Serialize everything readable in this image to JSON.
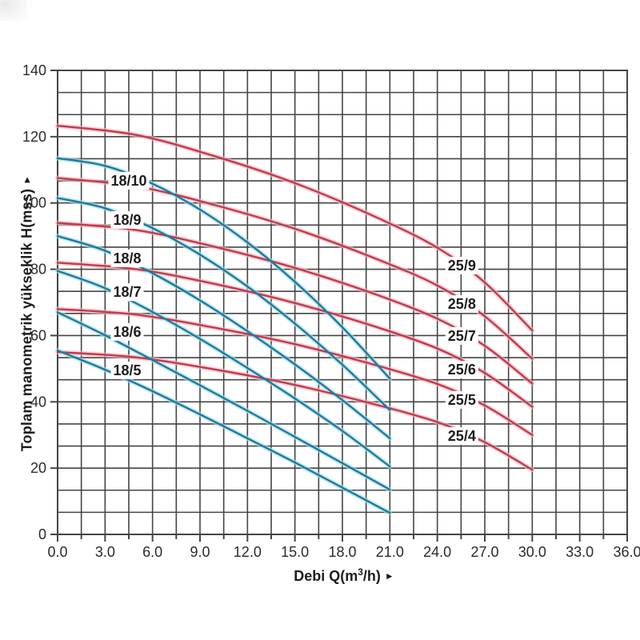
{
  "page": {
    "background": "#ffffff"
  },
  "chart_data": {
    "type": "line",
    "title": "",
    "xlabel": {
      "prefix": "Debi Q(m",
      "sup": "3",
      "suffix": "/h)",
      "arrow": "►"
    },
    "ylabel": {
      "text": "Toplam manometrik yükseklik H(mss)",
      "arrow": "►"
    },
    "xlim": [
      0,
      36
    ],
    "ylim": [
      0,
      140
    ],
    "x_major_step": 3,
    "x_minor_step": 1.5,
    "y_major_step": 20,
    "y_minor_step": 6.6667,
    "grid": true,
    "x_ticks": [
      "0.0",
      "3.0",
      "6.0",
      "9.0",
      "12.0",
      "15.0",
      "18.0",
      "21.0",
      "24.0",
      "27.0",
      "30.0",
      "33.0",
      "36.0"
    ],
    "y_ticks": [
      "0",
      "20",
      "40",
      "60",
      "80",
      "100",
      "120",
      "140"
    ],
    "colors": {
      "red_main": "#c23a4e",
      "red_halo": "#f0b9c0",
      "blue_main": "#1e7b9c",
      "blue_halo": "#a8dcec",
      "grid": "#454545",
      "tick_text": "#2b2b2b",
      "label_text": "#1c1c1c",
      "label_bg": "#ffffff"
    },
    "series": [
      {
        "name": "25/9",
        "family": "red",
        "points": [
          [
            0,
            123.3
          ],
          [
            5,
            120.5
          ],
          [
            10,
            114.0
          ],
          [
            15,
            106.0
          ],
          [
            20,
            96.0
          ],
          [
            24,
            86.5
          ],
          [
            27,
            76.0
          ],
          [
            30,
            61.5
          ]
        ]
      },
      {
        "name": "25/8",
        "family": "red",
        "points": [
          [
            0,
            107.5
          ],
          [
            5,
            105.0
          ],
          [
            10,
            99.3
          ],
          [
            15,
            92.2
          ],
          [
            20,
            83.4
          ],
          [
            24,
            75.1
          ],
          [
            27,
            65.8
          ],
          [
            30,
            53.0
          ]
        ]
      },
      {
        "name": "25/7",
        "family": "red",
        "points": [
          [
            0,
            94.0
          ],
          [
            5,
            91.8
          ],
          [
            10,
            86.7
          ],
          [
            15,
            80.4
          ],
          [
            20,
            72.6
          ],
          [
            24,
            65.1
          ],
          [
            27,
            56.9
          ],
          [
            30,
            45.5
          ]
        ]
      },
      {
        "name": "25/6",
        "family": "red",
        "points": [
          [
            0,
            82.0
          ],
          [
            5,
            80.0
          ],
          [
            10,
            75.5
          ],
          [
            15,
            69.8
          ],
          [
            20,
            62.8
          ],
          [
            24,
            56.1
          ],
          [
            27,
            48.7
          ],
          [
            30,
            38.5
          ]
        ]
      },
      {
        "name": "25/5",
        "family": "red",
        "points": [
          [
            0,
            68.0
          ],
          [
            5,
            66.3
          ],
          [
            10,
            62.3
          ],
          [
            15,
            57.4
          ],
          [
            20,
            51.2
          ],
          [
            24,
            45.4
          ],
          [
            27,
            38.9
          ],
          [
            30,
            30.0
          ]
        ]
      },
      {
        "name": "25/4",
        "family": "red",
        "points": [
          [
            0,
            55.0
          ],
          [
            5,
            53.4
          ],
          [
            10,
            49.7
          ],
          [
            15,
            45.1
          ],
          [
            20,
            39.3
          ],
          [
            24,
            33.9
          ],
          [
            27,
            27.8
          ],
          [
            30,
            19.5
          ]
        ]
      },
      {
        "name": "18/10",
        "family": "blue",
        "points": [
          [
            0,
            113.5
          ],
          [
            3,
            111.2
          ],
          [
            6,
            105.8
          ],
          [
            9,
            98.0
          ],
          [
            12,
            88.1
          ],
          [
            15,
            76.2
          ],
          [
            18,
            62.5
          ],
          [
            21,
            47.0
          ]
        ]
      },
      {
        "name": "18/9",
        "family": "blue",
        "points": [
          [
            0,
            101.5
          ],
          [
            3,
            98.4
          ],
          [
            6,
            92.4
          ],
          [
            9,
            84.4
          ],
          [
            12,
            74.8
          ],
          [
            15,
            63.6
          ],
          [
            18,
            51.2
          ],
          [
            21,
            37.5
          ]
        ]
      },
      {
        "name": "18/8",
        "family": "blue",
        "points": [
          [
            0,
            90.0
          ],
          [
            3,
            85.6
          ],
          [
            6,
            78.8
          ],
          [
            9,
            70.6
          ],
          [
            12,
            61.3
          ],
          [
            15,
            51.3
          ],
          [
            18,
            40.5
          ],
          [
            21,
            29.0
          ]
        ]
      },
      {
        "name": "18/7",
        "family": "blue",
        "points": [
          [
            0,
            79.5
          ],
          [
            3,
            74.3
          ],
          [
            6,
            67.1
          ],
          [
            9,
            59.0
          ],
          [
            12,
            50.2
          ],
          [
            15,
            41.0
          ],
          [
            18,
            31.2
          ],
          [
            21,
            20.5
          ]
        ]
      },
      {
        "name": "18/6",
        "family": "blue",
        "points": [
          [
            0,
            67.0
          ],
          [
            3,
            60.1
          ],
          [
            6,
            52.6
          ],
          [
            9,
            45.0
          ],
          [
            12,
            37.3
          ],
          [
            15,
            29.4
          ],
          [
            18,
            21.5
          ],
          [
            21,
            13.5
          ]
        ]
      },
      {
        "name": "18/5",
        "family": "blue",
        "points": [
          [
            0,
            55.5
          ],
          [
            3,
            49.7
          ],
          [
            6,
            43.2
          ],
          [
            9,
            36.2
          ],
          [
            12,
            29.0
          ],
          [
            15,
            21.7
          ],
          [
            18,
            14.1
          ],
          [
            21,
            6.5
          ]
        ]
      }
    ],
    "curve_labels": [
      {
        "text": "18/10",
        "q": 4.5,
        "h": 106.7,
        "family": "blue"
      },
      {
        "text": "18/9",
        "q": 4.4,
        "h": 94.9,
        "family": "blue"
      },
      {
        "text": "18/8",
        "q": 4.4,
        "h": 83.3,
        "family": "blue"
      },
      {
        "text": "18/7",
        "q": 4.4,
        "h": 73.1,
        "family": "blue"
      },
      {
        "text": "18/6",
        "q": 4.4,
        "h": 61.1,
        "family": "blue"
      },
      {
        "text": "18/5",
        "q": 4.4,
        "h": 49.5,
        "family": "blue"
      },
      {
        "text": "25/9",
        "q": 25.55,
        "h": 81.1,
        "family": "red"
      },
      {
        "text": "25/8",
        "q": 25.55,
        "h": 69.5,
        "family": "red"
      },
      {
        "text": "25/7",
        "q": 25.55,
        "h": 59.9,
        "family": "red"
      },
      {
        "text": "25/6",
        "q": 25.55,
        "h": 49.7,
        "family": "red"
      },
      {
        "text": "25/5",
        "q": 25.55,
        "h": 40.6,
        "family": "red"
      },
      {
        "text": "25/4",
        "q": 25.55,
        "h": 29.7,
        "family": "red"
      }
    ]
  }
}
